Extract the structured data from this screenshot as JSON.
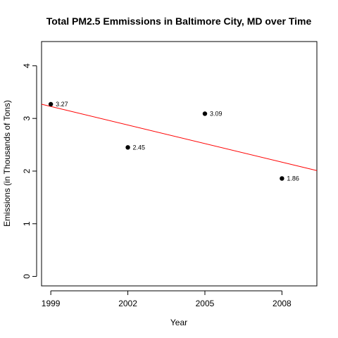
{
  "chart_data": {
    "type": "scatter",
    "title": "Total PM2.5 Emmissions in Baltimore City, MD over Time",
    "xlabel": "Year",
    "ylabel": "Emissions (in Thousands of Tons)",
    "x": [
      1999,
      2002,
      2005,
      2008
    ],
    "y": [
      3.27,
      2.45,
      3.09,
      1.86
    ],
    "point_labels": [
      "3.27",
      "2.45",
      "3.09",
      "1.86"
    ],
    "xlim": [
      1998.64,
      2009.36
    ],
    "ylim": [
      -0.18,
      4.46
    ],
    "xticks": [
      1999,
      2002,
      2005,
      2008
    ],
    "xtick_labels": [
      "1999",
      "2002",
      "2005",
      "2008"
    ],
    "yticks": [
      0,
      1,
      2,
      3,
      4
    ],
    "ytick_labels": [
      "0",
      "1",
      "2",
      "3",
      "4"
    ],
    "trend_line": {
      "intercept_at_1999": 3.2276,
      "slope_per_year": -0.1176,
      "color": "#ff0000"
    },
    "point_color": "#000000",
    "grid": false,
    "legend": false
  }
}
